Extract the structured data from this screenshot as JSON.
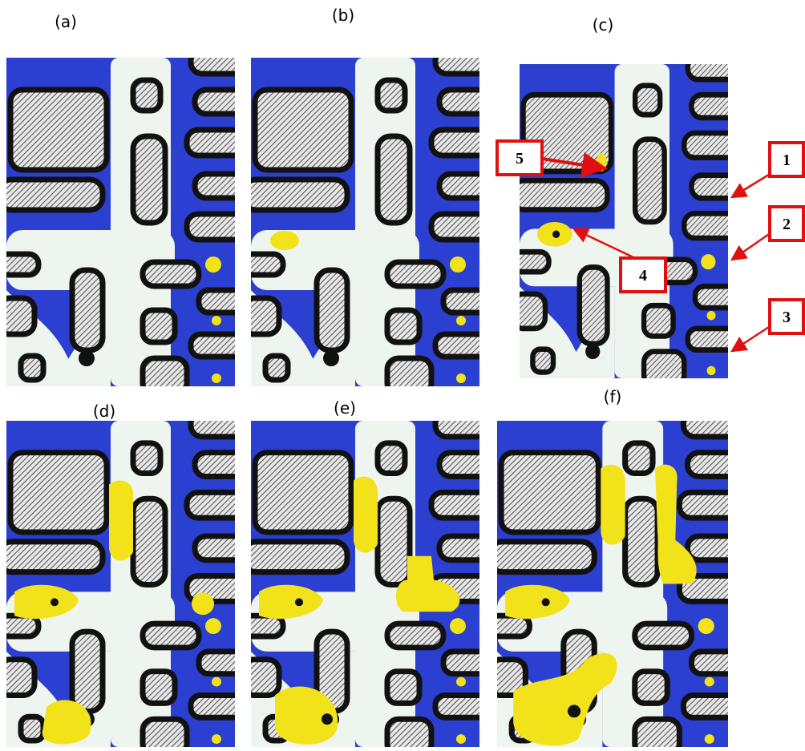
{
  "panels": [
    {
      "label": "(a)"
    },
    {
      "label": "(b)"
    },
    {
      "label": "(c)"
    },
    {
      "label": "(d)"
    },
    {
      "label": "(e)"
    },
    {
      "label": "(f)"
    }
  ],
  "callouts": [
    {
      "label": "1"
    },
    {
      "label": "2"
    },
    {
      "label": "3"
    },
    {
      "label": "4"
    },
    {
      "label": "5"
    }
  ]
}
